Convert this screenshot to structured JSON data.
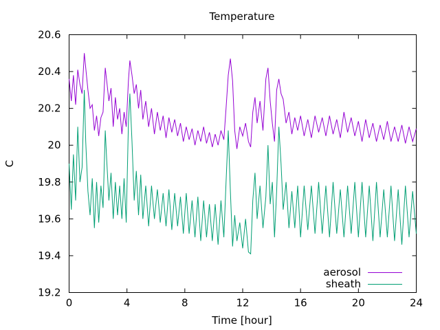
{
  "chart_data": {
    "type": "line",
    "title": "Temperature",
    "xlabel": "Time [hour]",
    "ylabel": "C",
    "xlim": [
      0,
      24
    ],
    "ylim": [
      19.2,
      20.6
    ],
    "xticks": [
      0,
      4,
      8,
      12,
      16,
      20,
      24
    ],
    "xtick_labels": [
      "0",
      "4",
      "8",
      "12",
      "16",
      "20",
      "24"
    ],
    "yticks": [
      19.2,
      19.4,
      19.6,
      19.8,
      20,
      20.2,
      20.4,
      20.6
    ],
    "ytick_labels": [
      "19.2",
      "19.4",
      "19.6",
      "19.8",
      "20",
      "20.2",
      "20.4",
      "20.6"
    ],
    "grid": false,
    "legend_position": "bottom-right",
    "series": [
      {
        "name": "aerosol",
        "color": "#9400d3",
        "x": [
          0.0,
          0.15,
          0.3,
          0.45,
          0.6,
          0.75,
          0.9,
          1.05,
          1.15,
          1.3,
          1.45,
          1.6,
          1.75,
          1.9,
          2.05,
          2.2,
          2.35,
          2.5,
          2.6,
          2.75,
          2.9,
          3.05,
          3.2,
          3.35,
          3.5,
          3.65,
          3.8,
          3.95,
          4.1,
          4.2,
          4.35,
          4.5,
          4.65,
          4.8,
          4.95,
          5.1,
          5.3,
          5.5,
          5.7,
          5.9,
          6.1,
          6.3,
          6.5,
          6.7,
          6.9,
          7.1,
          7.3,
          7.5,
          7.7,
          7.9,
          8.1,
          8.3,
          8.5,
          8.7,
          8.9,
          9.1,
          9.3,
          9.5,
          9.7,
          9.9,
          10.1,
          10.3,
          10.5,
          10.7,
          10.85,
          11.0,
          11.15,
          11.3,
          11.45,
          11.6,
          11.8,
          12.0,
          12.2,
          12.4,
          12.55,
          12.7,
          12.85,
          13.0,
          13.2,
          13.4,
          13.6,
          13.75,
          13.9,
          14.05,
          14.2,
          14.35,
          14.5,
          14.65,
          14.8,
          15.0,
          15.2,
          15.4,
          15.6,
          15.8,
          16.0,
          16.25,
          16.5,
          16.75,
          17.0,
          17.25,
          17.5,
          17.75,
          18.0,
          18.25,
          18.5,
          18.75,
          19.0,
          19.25,
          19.5,
          19.75,
          20.0,
          20.25,
          20.5,
          20.75,
          21.0,
          21.25,
          21.5,
          21.75,
          22.0,
          22.25,
          22.5,
          22.75,
          23.0,
          23.25,
          23.5,
          23.75,
          24.0
        ],
        "values": [
          20.36,
          20.24,
          20.38,
          20.22,
          20.41,
          20.33,
          20.28,
          20.5,
          20.42,
          20.3,
          20.2,
          20.22,
          20.08,
          20.16,
          20.05,
          20.15,
          20.18,
          20.42,
          20.35,
          20.24,
          20.31,
          20.1,
          20.26,
          20.14,
          20.2,
          20.06,
          20.18,
          20.1,
          20.35,
          20.46,
          20.38,
          20.28,
          20.33,
          20.2,
          20.3,
          20.14,
          20.24,
          20.1,
          20.2,
          20.06,
          20.18,
          20.08,
          20.16,
          20.04,
          20.15,
          20.07,
          20.14,
          20.05,
          20.12,
          20.02,
          20.1,
          20.03,
          20.09,
          20.0,
          20.08,
          20.02,
          20.1,
          20.01,
          20.07,
          19.99,
          20.06,
          20.0,
          20.08,
          20.03,
          20.2,
          20.38,
          20.47,
          20.35,
          20.08,
          19.98,
          20.1,
          20.05,
          20.12,
          20.02,
          19.99,
          20.18,
          20.26,
          20.12,
          20.24,
          20.08,
          20.36,
          20.42,
          20.24,
          20.12,
          20.02,
          20.3,
          20.36,
          20.28,
          20.25,
          20.12,
          20.18,
          20.06,
          20.15,
          20.08,
          20.16,
          20.05,
          20.14,
          20.04,
          20.16,
          20.07,
          20.15,
          20.05,
          20.16,
          20.06,
          20.14,
          20.04,
          20.18,
          20.07,
          20.15,
          20.05,
          20.13,
          20.02,
          20.14,
          20.04,
          20.12,
          20.02,
          20.11,
          20.03,
          20.13,
          20.02,
          20.1,
          20.02,
          20.11,
          20.01,
          20.1,
          20.02,
          20.09
        ]
      },
      {
        "name": "sheath",
        "color": "#009e73",
        "x": [
          0.0,
          0.15,
          0.3,
          0.45,
          0.6,
          0.75,
          0.9,
          1.05,
          1.15,
          1.3,
          1.45,
          1.6,
          1.75,
          1.9,
          2.05,
          2.2,
          2.35,
          2.5,
          2.6,
          2.75,
          2.9,
          3.05,
          3.2,
          3.35,
          3.5,
          3.65,
          3.8,
          3.95,
          4.1,
          4.2,
          4.35,
          4.5,
          4.65,
          4.8,
          4.95,
          5.1,
          5.3,
          5.5,
          5.7,
          5.9,
          6.1,
          6.3,
          6.5,
          6.7,
          6.9,
          7.1,
          7.3,
          7.5,
          7.7,
          7.9,
          8.1,
          8.3,
          8.5,
          8.7,
          8.9,
          9.1,
          9.3,
          9.5,
          9.7,
          9.9,
          10.1,
          10.3,
          10.5,
          10.7,
          10.85,
          11.0,
          11.15,
          11.3,
          11.45,
          11.6,
          11.8,
          12.0,
          12.2,
          12.4,
          12.55,
          12.7,
          12.85,
          13.0,
          13.2,
          13.4,
          13.6,
          13.75,
          13.9,
          14.05,
          14.2,
          14.35,
          14.5,
          14.65,
          14.8,
          15.0,
          15.2,
          15.4,
          15.6,
          15.8,
          16.0,
          16.25,
          16.5,
          16.75,
          17.0,
          17.25,
          17.5,
          17.75,
          18.0,
          18.25,
          18.5,
          18.75,
          19.0,
          19.25,
          19.5,
          19.75,
          20.0,
          20.25,
          20.5,
          20.75,
          21.0,
          21.25,
          21.5,
          21.75,
          22.0,
          22.25,
          22.5,
          22.75,
          23.0,
          23.25,
          23.5,
          23.75,
          24.0
        ],
        "values": [
          19.9,
          19.65,
          19.95,
          19.7,
          20.1,
          19.8,
          19.88,
          20.3,
          20.02,
          19.75,
          19.62,
          19.82,
          19.55,
          19.8,
          19.58,
          19.78,
          19.66,
          20.08,
          19.92,
          19.7,
          19.85,
          19.6,
          19.8,
          19.62,
          19.78,
          19.6,
          19.82,
          19.58,
          20.12,
          20.28,
          20.02,
          19.7,
          19.86,
          19.62,
          19.84,
          19.6,
          19.78,
          19.56,
          19.78,
          19.6,
          19.76,
          19.58,
          19.74,
          19.56,
          19.76,
          19.54,
          19.74,
          19.56,
          19.72,
          19.52,
          19.74,
          19.52,
          19.7,
          19.5,
          19.72,
          19.48,
          19.7,
          19.5,
          19.68,
          19.48,
          19.68,
          19.46,
          19.7,
          19.5,
          19.8,
          20.08,
          19.75,
          19.45,
          19.62,
          19.48,
          19.58,
          19.44,
          19.6,
          19.42,
          19.41,
          19.7,
          19.85,
          19.6,
          19.78,
          19.55,
          19.72,
          20.0,
          19.68,
          19.8,
          19.5,
          19.75,
          20.1,
          19.9,
          19.65,
          19.8,
          19.55,
          19.75,
          19.55,
          19.78,
          19.5,
          19.78,
          19.54,
          19.78,
          19.52,
          19.8,
          19.52,
          19.78,
          19.5,
          19.8,
          19.52,
          19.76,
          19.5,
          19.78,
          19.52,
          19.8,
          19.5,
          19.8,
          19.5,
          19.78,
          19.48,
          19.8,
          19.5,
          19.76,
          19.5,
          19.78,
          19.48,
          19.76,
          19.46,
          19.78,
          19.5,
          19.75,
          19.52
        ]
      }
    ]
  }
}
